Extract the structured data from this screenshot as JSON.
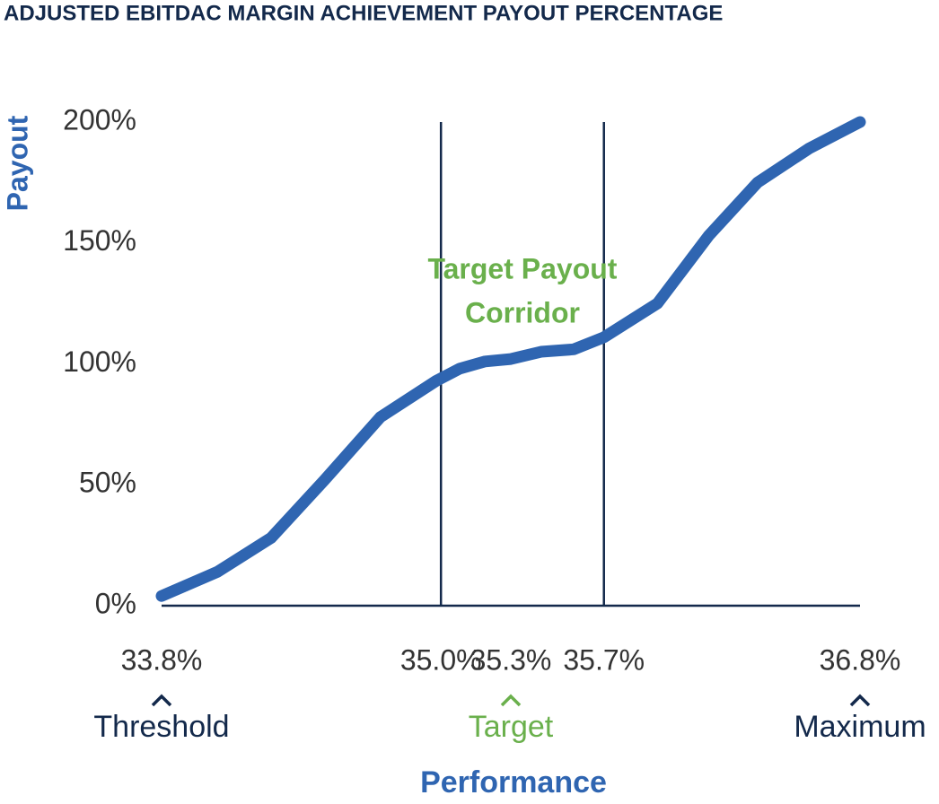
{
  "chart_data": {
    "type": "line",
    "title": "ADJUSTED EBITDAC MARGIN ACHIEVEMENT PAYOUT PERCENTAGE",
    "x_label": "Performance",
    "y_label": "Payout",
    "x": [
      33.8,
      34.04,
      34.27,
      34.5,
      34.74,
      34.98,
      35.08,
      35.19,
      35.3,
      35.43,
      35.57,
      35.7,
      35.93,
      36.15,
      36.36,
      36.58,
      36.8
    ],
    "series": [
      {
        "name": "Payout",
        "color": "#2f65b1",
        "values": [
          4,
          14,
          28,
          52,
          78,
          93,
          98,
          101,
          102,
          105,
          106,
          111,
          125,
          153,
          175,
          189,
          200
        ]
      }
    ],
    "xlim": [
      33.8,
      36.8
    ],
    "ylim": [
      0,
      200
    ],
    "xticks": [
      {
        "value": 33.8,
        "label": "33.8%"
      },
      {
        "value": 35.0,
        "label": "35.0%"
      },
      {
        "value": 35.3,
        "label": "35.3%"
      },
      {
        "value": 35.7,
        "label": "35.7%"
      },
      {
        "value": 36.8,
        "label": "36.8%"
      }
    ],
    "yticks": [
      {
        "value": 0,
        "label": "0%"
      },
      {
        "value": 50,
        "label": "50%"
      },
      {
        "value": 100,
        "label": "100%"
      },
      {
        "value": 150,
        "label": "150%"
      },
      {
        "value": 200,
        "label": "200%"
      }
    ],
    "vlines": [
      35.0,
      35.7
    ],
    "corridor_label": [
      "Target Payout",
      "Corridor"
    ],
    "markers": [
      {
        "x": 33.8,
        "label": "Threshold",
        "color": "#13294b"
      },
      {
        "x": 35.3,
        "label": "Target",
        "color": "#6ab04c"
      },
      {
        "x": 36.8,
        "label": "Maximum",
        "color": "#13294b"
      }
    ]
  }
}
